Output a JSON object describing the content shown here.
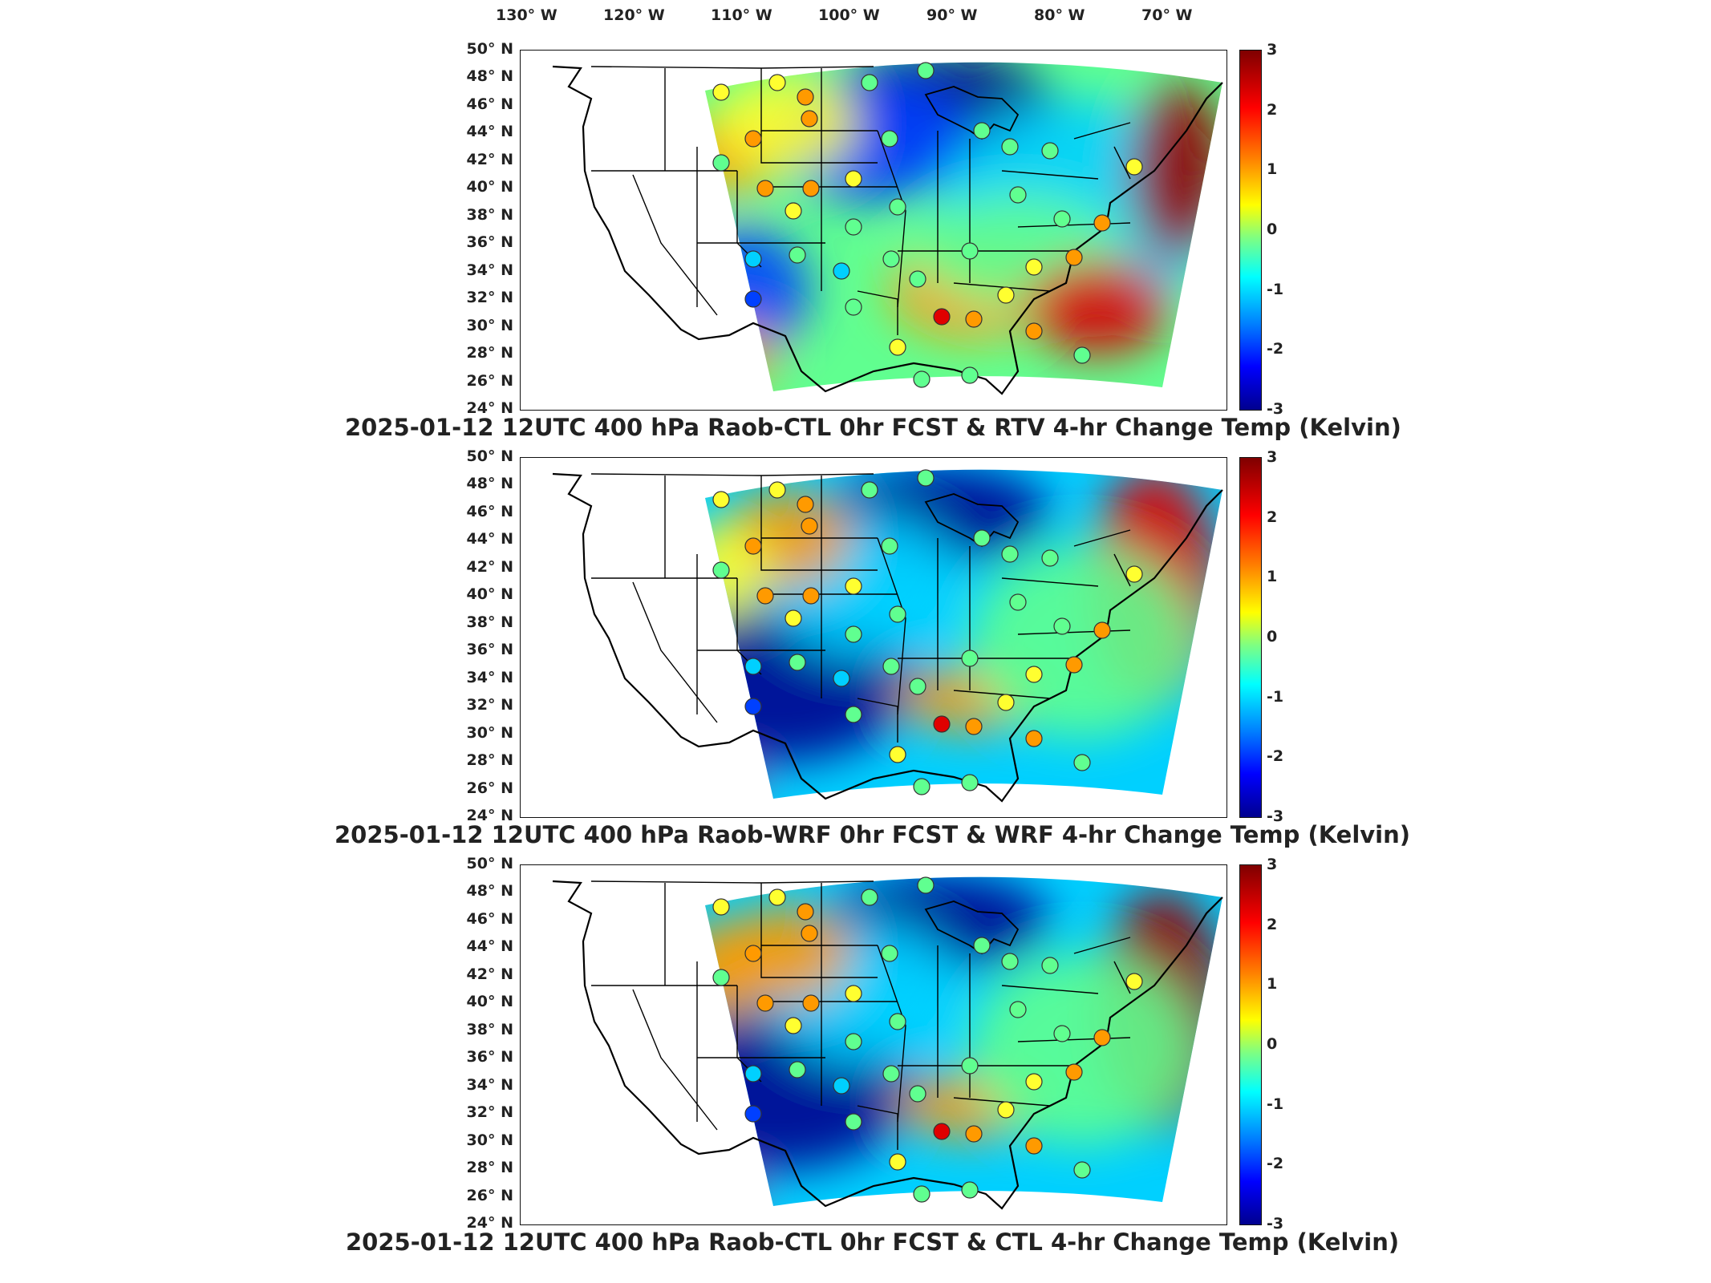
{
  "lon_labels": [
    "130° W",
    "120° W",
    "110° W",
    "100° W",
    "90° W",
    "80° W",
    "70° W"
  ],
  "lat_labels": [
    "50° N",
    "48° N",
    "46° N",
    "44° N",
    "42° N",
    "40° N",
    "38° N",
    "36° N",
    "34° N",
    "32° N",
    "30° N",
    "28° N",
    "26° N",
    "24° N"
  ],
  "colorbar_ticks": [
    "3",
    "2",
    "1",
    "0",
    "-1",
    "-2",
    "-3"
  ],
  "panels": [
    {
      "title": "2025-01-12 12UTC 400 hPa Raob-CTL 0hr FCST & RTV 4-hr Change Temp (Kelvin)",
      "field": "rtv"
    },
    {
      "title": "2025-01-12 12UTC 400 hPa Raob-WRF 0hr FCST & WRF 4-hr Change Temp (Kelvin)",
      "field": "wrf"
    },
    {
      "title": "2025-01-12 12UTC 400 hPa Raob-CTL 0hr FCST & CTL 4-hr Change Temp (Kelvin)",
      "field": "ctl"
    }
  ],
  "colors": {
    "blue_dark": "#00008f",
    "blue": "#0040ff",
    "cyan": "#00d0ff",
    "green": "#60ff90",
    "yellow": "#ffff30",
    "orange": "#ff9a00",
    "red": "#e00000",
    "red_dark": "#9a0000"
  }
}
